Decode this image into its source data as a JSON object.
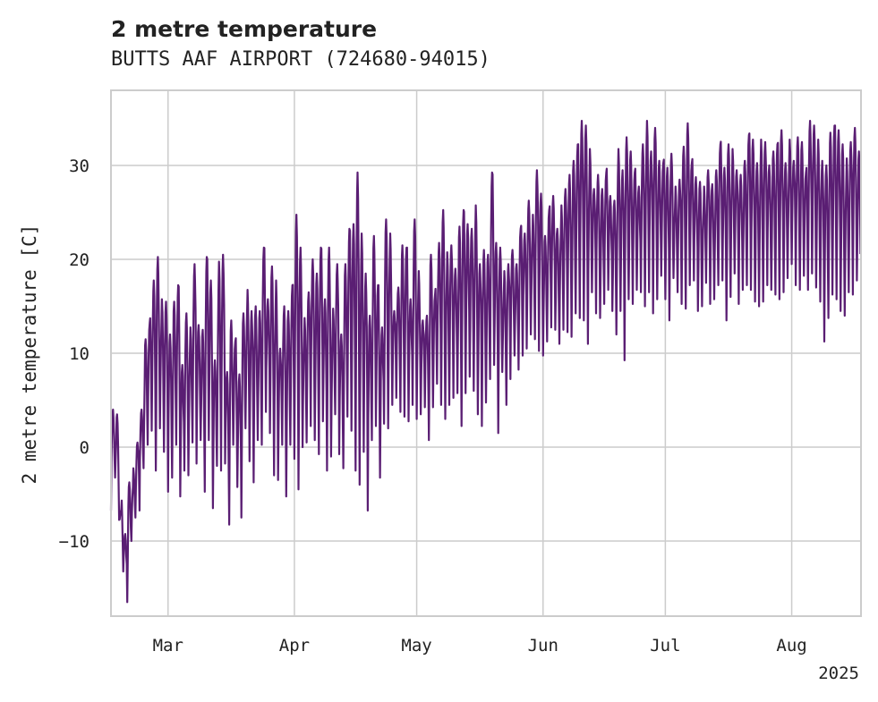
{
  "chart_data": {
    "type": "line",
    "title": "2 metre temperature",
    "subtitle": "BUTTS AAF AIRPORT (724680-94015)",
    "ylabel": "2 metre temperature [C]",
    "xlabel": "",
    "year_label": "2025",
    "xlim": [
      "2025-02-15",
      "2025-08-18"
    ],
    "ylim": [
      -18,
      38
    ],
    "yticks": [
      -10,
      0,
      10,
      20,
      30
    ],
    "xticks": [
      {
        "date": "2025-03-01",
        "label": "Mar"
      },
      {
        "date": "2025-04-01",
        "label": "Apr"
      },
      {
        "date": "2025-05-01",
        "label": "May"
      },
      {
        "date": "2025-06-01",
        "label": "Jun"
      },
      {
        "date": "2025-07-01",
        "label": "Jul"
      },
      {
        "date": "2025-08-01",
        "label": "Aug"
      }
    ],
    "grid": true,
    "legend": "none",
    "series_color": "#5a1e73",
    "series": [
      {
        "x": [
          "2025-02-15",
          "2025-02-16",
          "2025-02-17",
          "2025-02-18",
          "2025-02-19",
          "2025-02-20",
          "2025-02-21",
          "2025-02-22",
          "2025-02-23",
          "2025-02-24",
          "2025-02-25",
          "2025-02-26",
          "2025-02-27",
          "2025-02-28",
          "2025-03-01",
          "2025-03-02",
          "2025-03-03",
          "2025-03-04",
          "2025-03-05",
          "2025-03-06",
          "2025-03-07",
          "2025-03-08",
          "2025-03-09",
          "2025-03-10",
          "2025-03-11",
          "2025-03-12",
          "2025-03-13",
          "2025-03-14",
          "2025-03-15",
          "2025-03-16",
          "2025-03-17",
          "2025-03-18",
          "2025-03-19",
          "2025-03-20",
          "2025-03-21",
          "2025-03-22",
          "2025-03-23",
          "2025-03-24",
          "2025-03-25",
          "2025-03-26",
          "2025-03-27",
          "2025-03-28",
          "2025-03-29",
          "2025-03-30",
          "2025-03-31",
          "2025-04-01",
          "2025-04-02",
          "2025-04-03",
          "2025-04-04",
          "2025-04-05",
          "2025-04-06",
          "2025-04-07",
          "2025-04-08",
          "2025-04-09",
          "2025-04-10",
          "2025-04-11",
          "2025-04-12",
          "2025-04-13",
          "2025-04-14",
          "2025-04-15",
          "2025-04-16",
          "2025-04-17",
          "2025-04-18",
          "2025-04-19",
          "2025-04-20",
          "2025-04-21",
          "2025-04-22",
          "2025-04-23",
          "2025-04-24",
          "2025-04-25",
          "2025-04-26",
          "2025-04-27",
          "2025-04-28",
          "2025-04-29",
          "2025-04-30",
          "2025-05-01",
          "2025-05-02",
          "2025-05-03",
          "2025-05-04",
          "2025-05-05",
          "2025-05-06",
          "2025-05-07",
          "2025-05-08",
          "2025-05-09",
          "2025-05-10",
          "2025-05-11",
          "2025-05-12",
          "2025-05-13",
          "2025-05-14",
          "2025-05-15",
          "2025-05-16",
          "2025-05-17",
          "2025-05-18",
          "2025-05-19",
          "2025-05-20",
          "2025-05-21",
          "2025-05-22",
          "2025-05-23",
          "2025-05-24",
          "2025-05-25",
          "2025-05-26",
          "2025-05-27",
          "2025-05-28",
          "2025-05-29",
          "2025-05-30",
          "2025-05-31",
          "2025-06-01",
          "2025-06-02",
          "2025-06-03",
          "2025-06-04",
          "2025-06-05",
          "2025-06-06",
          "2025-06-07",
          "2025-06-08",
          "2025-06-09",
          "2025-06-10",
          "2025-06-11",
          "2025-06-12",
          "2025-06-13",
          "2025-06-14",
          "2025-06-15",
          "2025-06-16",
          "2025-06-17",
          "2025-06-18",
          "2025-06-19",
          "2025-06-20",
          "2025-06-21",
          "2025-06-22",
          "2025-06-23",
          "2025-06-24",
          "2025-06-25",
          "2025-06-26",
          "2025-06-27",
          "2025-06-28",
          "2025-06-29",
          "2025-06-30",
          "2025-07-01",
          "2025-07-02",
          "2025-07-03",
          "2025-07-04",
          "2025-07-05",
          "2025-07-06",
          "2025-07-07",
          "2025-07-08",
          "2025-07-09",
          "2025-07-10",
          "2025-07-11",
          "2025-07-12",
          "2025-07-13",
          "2025-07-14",
          "2025-07-15",
          "2025-07-16",
          "2025-07-17",
          "2025-07-18",
          "2025-07-19",
          "2025-07-20",
          "2025-07-21",
          "2025-07-22",
          "2025-07-23",
          "2025-07-24",
          "2025-07-25",
          "2025-07-26",
          "2025-07-27",
          "2025-07-28",
          "2025-07-29",
          "2025-07-30",
          "2025-07-31",
          "2025-08-01",
          "2025-08-02",
          "2025-08-03",
          "2025-08-04",
          "2025-08-05",
          "2025-08-06",
          "2025-08-07",
          "2025-08-08",
          "2025-08-09",
          "2025-08-10",
          "2025-08-11",
          "2025-08-12",
          "2025-08-13",
          "2025-08-14",
          "2025-08-15",
          "2025-08-16",
          "2025-08-17"
        ],
        "min": [
          -6,
          -3,
          -8,
          -14,
          -16,
          -10,
          -8,
          -6,
          -2,
          0,
          1,
          -2,
          2,
          -1,
          -4,
          -3,
          0,
          -6,
          -2,
          -3,
          0,
          -1,
          1,
          -5,
          0,
          -6,
          -2,
          -3,
          -1,
          -8,
          0,
          -5,
          -7,
          2,
          -2,
          -3,
          1,
          0,
          3,
          2,
          -3,
          -4,
          1,
          -5,
          0,
          -2,
          -4,
          0,
          0,
          3,
          1,
          -1,
          2,
          -2,
          -1,
          3,
          0,
          -2,
          3,
          1,
          -2,
          -4,
          -1,
          -6,
          1,
          2,
          -4,
          3,
          2,
          4,
          6,
          4,
          3,
          2,
          5,
          3,
          3,
          5,
          1,
          4,
          6,
          5,
          3,
          4,
          6,
          6,
          2,
          5,
          8,
          6,
          3,
          3,
          5,
          7,
          8,
          2,
          8,
          4,
          8,
          10,
          8,
          9,
          11,
          12,
          11,
          11,
          10,
          11,
          12,
          13,
          11,
          12,
          13,
          12,
          14,
          13,
          14,
          11,
          16,
          15,
          14,
          15,
          16,
          15,
          12,
          14,
          10,
          16,
          15,
          16,
          17,
          15,
          16,
          15,
          16,
          18,
          15,
          14,
          18,
          16,
          16,
          15,
          17,
          17,
          15,
          15,
          17,
          16,
          16,
          17,
          17,
          14,
          16,
          18,
          16,
          17,
          17,
          16,
          16,
          15,
          15,
          18,
          17,
          16,
          15,
          17,
          18,
          19,
          18,
          17,
          18,
          16,
          19,
          17,
          15,
          12,
          14,
          16,
          15,
          15,
          14,
          16,
          17,
          18,
          14,
          15,
          18,
          17
        ],
        "max": [
          4,
          3,
          -6,
          -9,
          -4,
          -3,
          1,
          4,
          11,
          14,
          18,
          20,
          15,
          16,
          12,
          15,
          18,
          9,
          14,
          12,
          20,
          13,
          12,
          21,
          18,
          9,
          19,
          21,
          8,
          13,
          12,
          8,
          14,
          16,
          15,
          15,
          14,
          22,
          16,
          19,
          17,
          11,
          15,
          14,
          18,
          25,
          21,
          13,
          17,
          20,
          18,
          22,
          16,
          21,
          14,
          20,
          12,
          19,
          24,
          24,
          29,
          22,
          19,
          14,
          22,
          18,
          13,
          24,
          22,
          15,
          17,
          21,
          22,
          16,
          24,
          18,
          14,
          14,
          20,
          17,
          22,
          25,
          20,
          22,
          19,
          23,
          26,
          24,
          23,
          25,
          20,
          21,
          20,
          30,
          22,
          21,
          18,
          20,
          21,
          19,
          24,
          23,
          26,
          24,
          30,
          27,
          22,
          26,
          27,
          23,
          25,
          28,
          29,
          30,
          33,
          35,
          34,
          31,
          28,
          29,
          27,
          30,
          27,
          26,
          31,
          30,
          33,
          31,
          30,
          28,
          32,
          34,
          32,
          34,
          30,
          31,
          30,
          31,
          27,
          29,
          32,
          34,
          31,
          29,
          28,
          27,
          30,
          28,
          29,
          33,
          30,
          32,
          31,
          30,
          29,
          30,
          34,
          33,
          30,
          32,
          33,
          30,
          31,
          33,
          34,
          30,
          32,
          31,
          33,
          32,
          30,
          35,
          34,
          32,
          31,
          30,
          33,
          35,
          34,
          32,
          30,
          33,
          34,
          31,
          29
        ]
      }
    ]
  }
}
